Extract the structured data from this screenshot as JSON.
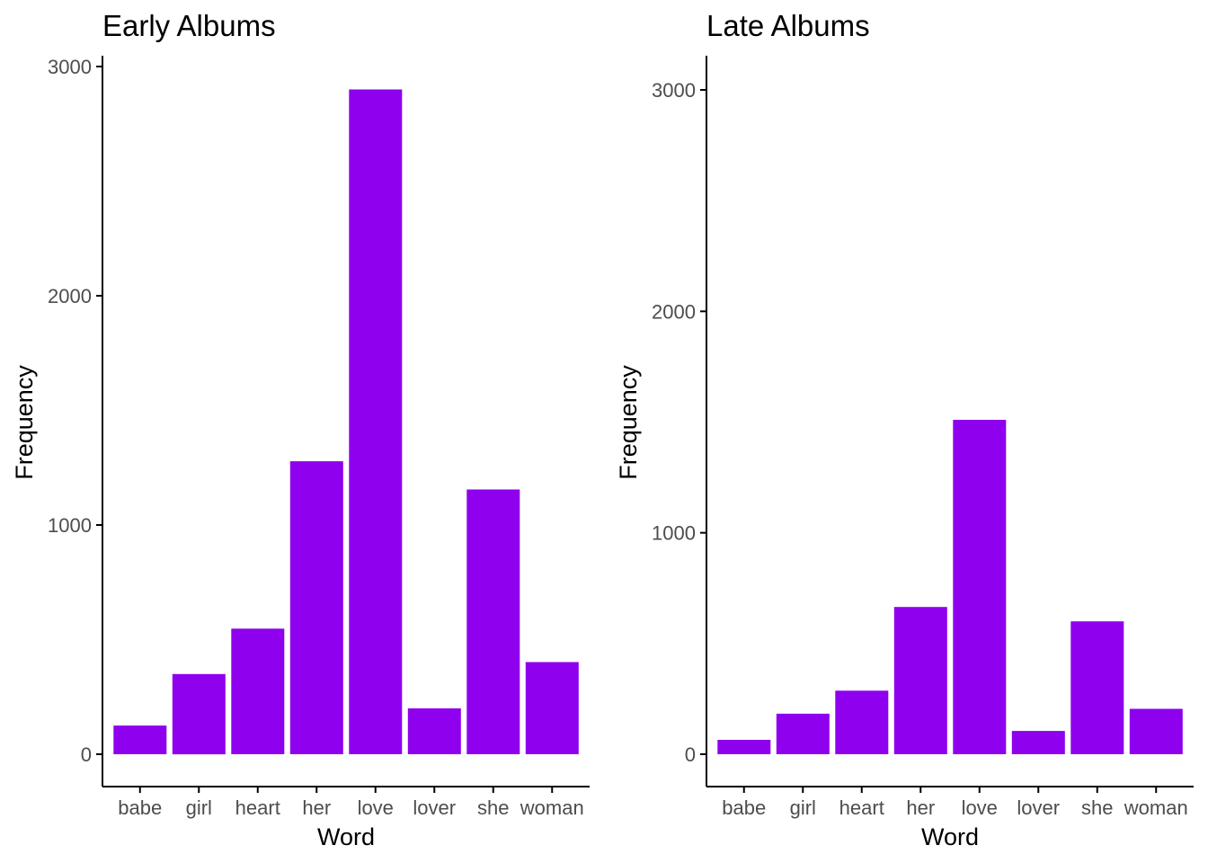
{
  "colors": {
    "bar": "#8E00EE",
    "axis": "#000000",
    "tick_text": "#4d4d4d"
  },
  "chart_data": [
    {
      "type": "bar",
      "title": "Early Albums",
      "xlabel": "Word",
      "ylabel": "Frequency",
      "categories": [
        "babe",
        "girl",
        "heart",
        "her",
        "love",
        "lover",
        "she",
        "woman"
      ],
      "values": [
        125,
        350,
        548,
        1278,
        2900,
        200,
        1155,
        402
      ],
      "ylim": [
        0,
        3000
      ],
      "yticks": [
        "0",
        "1000",
        "2000",
        "3000"
      ],
      "grid": false
    },
    {
      "type": "bar",
      "title": "Late Albums",
      "xlabel": "Word",
      "ylabel": "Frequency",
      "categories": [
        "babe",
        "girl",
        "heart",
        "her",
        "love",
        "lover",
        "she",
        "woman"
      ],
      "values": [
        65,
        183,
        287,
        665,
        1510,
        105,
        600,
        205
      ],
      "ylim": [
        0,
        3000
      ],
      "yticks": [
        "0",
        "1000",
        "2000",
        "3000"
      ],
      "grid": false
    }
  ]
}
